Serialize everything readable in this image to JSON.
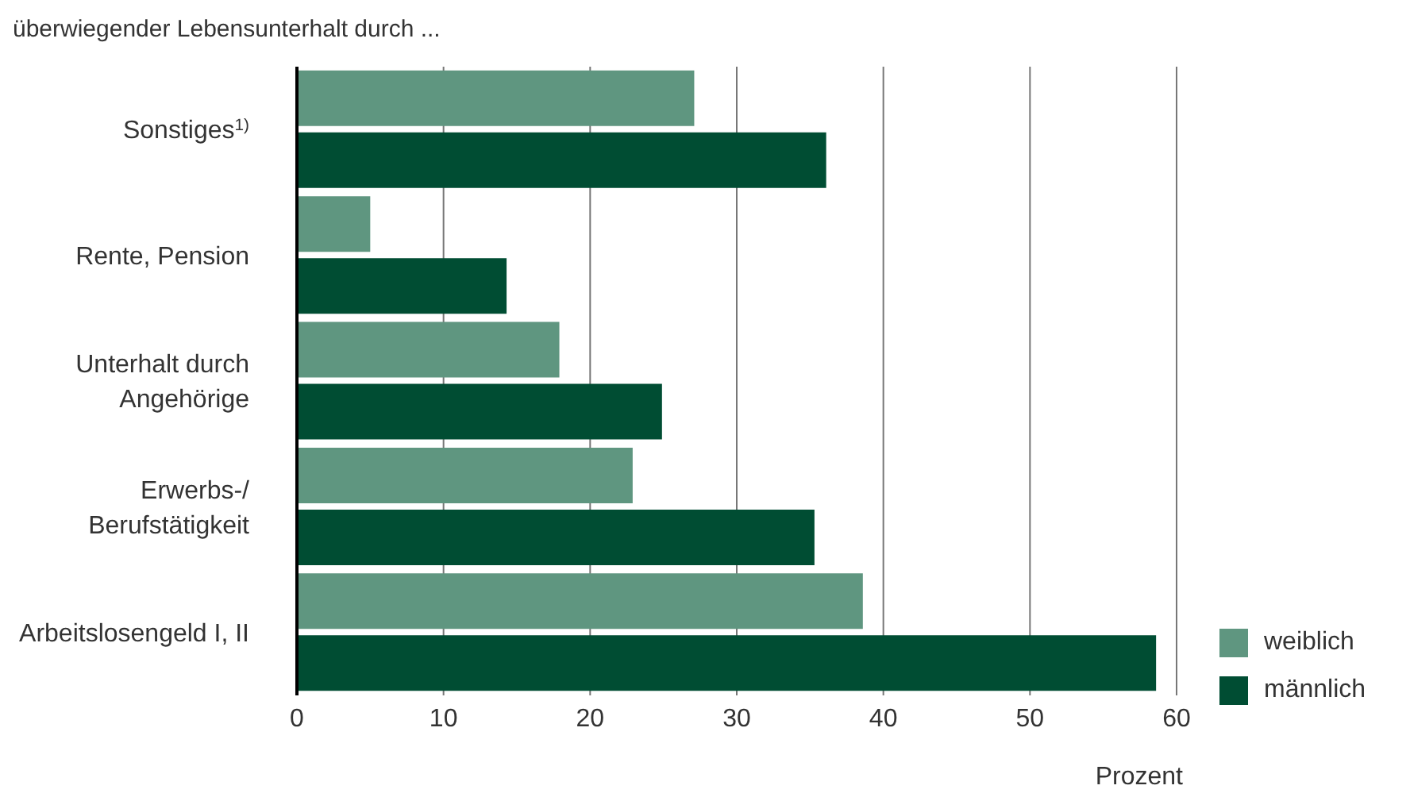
{
  "chart_data": {
    "type": "bar",
    "orientation": "horizontal",
    "title": "überwiegender Lebensunterhalt durch ...",
    "xlabel": "Prozent",
    "categories": [
      "Sonstiges$^{1)}$",
      "Rente, Pension",
      "Unterhalt durch\nAngehörige",
      "Erwerbs-/\nBerufstätigkeit",
      "Arbeitslosengeld I, II"
    ],
    "series": [
      {
        "name": "weiblich",
        "color": "#5f9680",
        "values": [
          27.1,
          5.0,
          17.9,
          22.9,
          38.6
        ]
      },
      {
        "name": "männlich",
        "color": "#004d33",
        "values": [
          36.1,
          14.3,
          24.9,
          35.3,
          58.6
        ]
      }
    ],
    "xlim": [
      0,
      60
    ],
    "xticks": [
      0,
      10,
      20,
      30,
      40,
      50,
      60
    ],
    "grid": "x",
    "legend": "bottom right"
  }
}
